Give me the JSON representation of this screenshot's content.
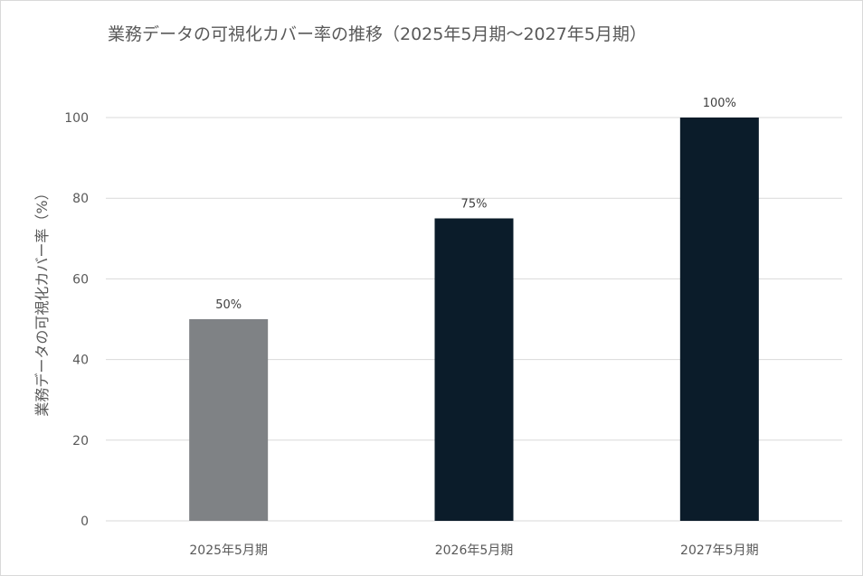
{
  "chart_data": {
    "type": "bar",
    "title": "業務データの可視化カバー率の推移（2025年5月期〜2027年5月期）",
    "xlabel": "",
    "ylabel": "業務データの可視化カバー率（%）",
    "categories": [
      "2025年5月期",
      "2026年5月期",
      "2027年5月期"
    ],
    "values": [
      50,
      75,
      100
    ],
    "data_labels": [
      "50%",
      "75%",
      "100%"
    ],
    "ylim": [
      0,
      100
    ],
    "yticks": [
      0,
      20,
      40,
      60,
      80,
      100
    ],
    "grid": true,
    "legend": "none",
    "colors": {
      "bars": [
        "#7f8285",
        "#0b1c2a",
        "#0b1c2a"
      ],
      "grid": "#d9d9d9",
      "text": "#595959"
    }
  }
}
